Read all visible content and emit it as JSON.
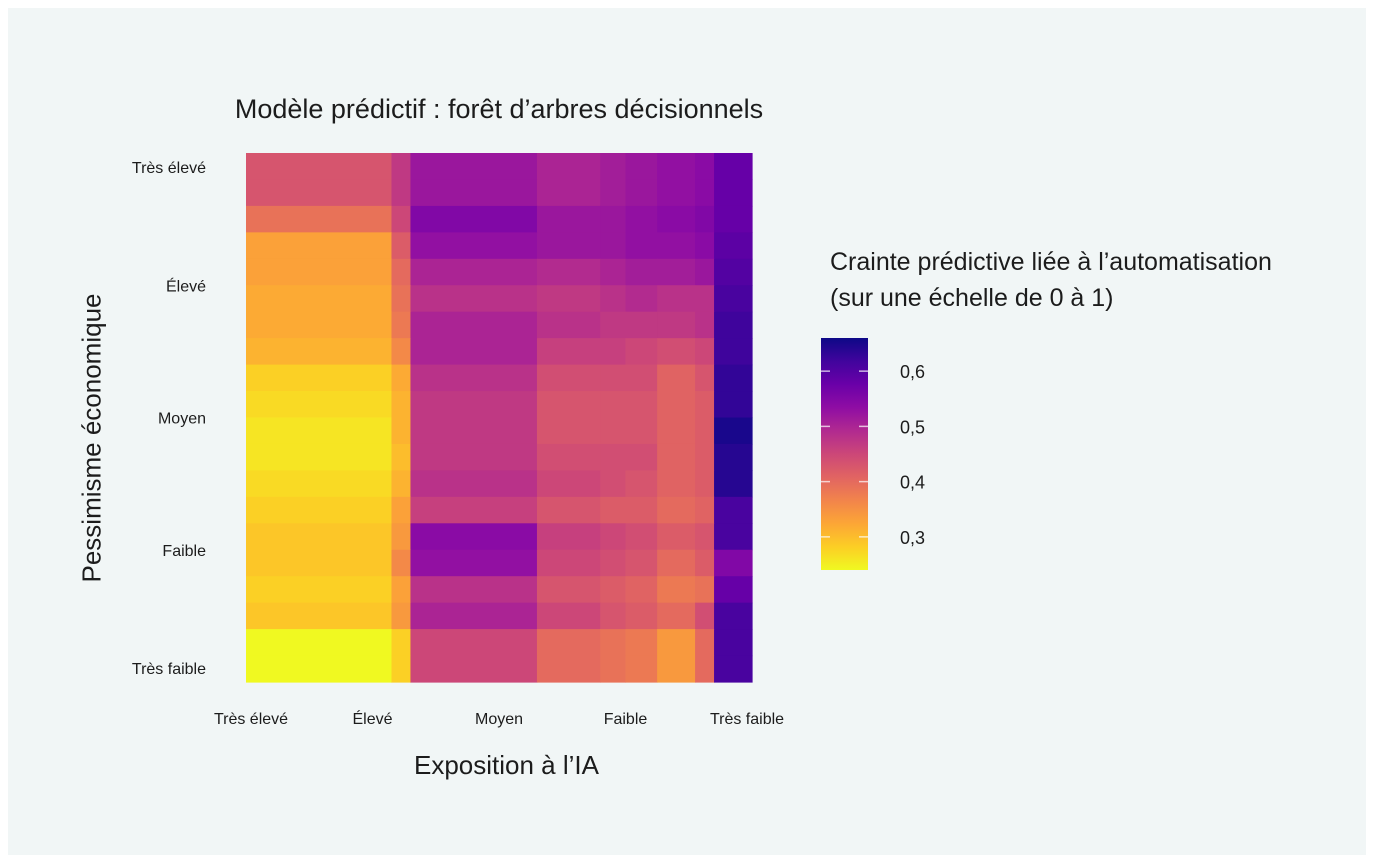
{
  "chart_data": {
    "type": "heatmap",
    "title": "Modèle prédictif : forêt d’arbres décisionnels",
    "xlabel": "Exposition à l’IA",
    "ylabel": "Pessimisme économique",
    "x_tick_labels": [
      "Très élevé",
      "Élevé",
      "Moyen",
      "Faible",
      "Très faible"
    ],
    "y_tick_labels": [
      "Très élevé",
      "Élevé",
      "Moyen",
      "Faible",
      "Très faible"
    ],
    "legend": {
      "title_line1": "Crainte prédictive liée à l’automatisation",
      "title_line2": "(sur une échelle de 0 à 1)",
      "tick_labels": [
        "0,6",
        "0,5",
        "0,4",
        "0,3"
      ],
      "tick_values": [
        0.6,
        0.5,
        0.4,
        0.3
      ],
      "range": [
        0.24,
        0.66
      ],
      "colormap": "plasma",
      "placement": "right"
    },
    "x_edges": [
      1.0,
      2.15,
      2.3,
      3.3,
      3.8,
      4.0,
      4.25,
      4.55,
      4.7,
      5.0
    ],
    "y_edges": [
      5.0,
      4.8,
      4.6,
      4.4,
      4.2,
      4.0,
      3.8,
      3.6,
      3.4,
      3.2,
      3.0,
      2.8,
      2.6,
      2.4,
      2.2,
      2.0,
      1.8,
      1.6,
      1.4,
      1.2,
      1.0
    ],
    "values": [
      [
        0.43,
        0.47,
        0.52,
        0.5,
        0.51,
        0.52,
        0.53,
        0.54,
        0.58
      ],
      [
        0.43,
        0.47,
        0.52,
        0.5,
        0.51,
        0.52,
        0.53,
        0.54,
        0.58
      ],
      [
        0.39,
        0.45,
        0.55,
        0.52,
        0.52,
        0.53,
        0.54,
        0.55,
        0.58
      ],
      [
        0.33,
        0.42,
        0.53,
        0.52,
        0.52,
        0.53,
        0.53,
        0.54,
        0.59
      ],
      [
        0.33,
        0.4,
        0.5,
        0.49,
        0.5,
        0.51,
        0.51,
        0.52,
        0.6
      ],
      [
        0.32,
        0.39,
        0.48,
        0.47,
        0.48,
        0.49,
        0.48,
        0.48,
        0.61
      ],
      [
        0.32,
        0.38,
        0.5,
        0.48,
        0.47,
        0.47,
        0.47,
        0.48,
        0.62
      ],
      [
        0.31,
        0.36,
        0.5,
        0.46,
        0.46,
        0.45,
        0.44,
        0.45,
        0.62
      ],
      [
        0.28,
        0.32,
        0.48,
        0.44,
        0.44,
        0.44,
        0.41,
        0.43,
        0.63
      ],
      [
        0.27,
        0.31,
        0.47,
        0.43,
        0.43,
        0.43,
        0.41,
        0.42,
        0.63
      ],
      [
        0.26,
        0.31,
        0.47,
        0.43,
        0.43,
        0.43,
        0.41,
        0.42,
        0.65
      ],
      [
        0.26,
        0.3,
        0.47,
        0.44,
        0.44,
        0.44,
        0.41,
        0.42,
        0.64
      ],
      [
        0.27,
        0.31,
        0.48,
        0.45,
        0.44,
        0.43,
        0.41,
        0.42,
        0.64
      ],
      [
        0.28,
        0.33,
        0.46,
        0.43,
        0.42,
        0.42,
        0.4,
        0.41,
        0.61
      ],
      [
        0.29,
        0.34,
        0.54,
        0.46,
        0.45,
        0.44,
        0.42,
        0.43,
        0.61
      ],
      [
        0.29,
        0.36,
        0.53,
        0.45,
        0.44,
        0.43,
        0.4,
        0.42,
        0.55
      ],
      [
        0.28,
        0.33,
        0.48,
        0.43,
        0.42,
        0.41,
        0.38,
        0.39,
        0.58
      ],
      [
        0.29,
        0.34,
        0.5,
        0.45,
        0.43,
        0.42,
        0.4,
        0.44,
        0.61
      ],
      [
        0.24,
        0.28,
        0.45,
        0.4,
        0.39,
        0.38,
        0.34,
        0.4,
        0.61
      ],
      [
        0.24,
        0.28,
        0.45,
        0.4,
        0.39,
        0.38,
        0.34,
        0.4,
        0.61
      ]
    ]
  }
}
